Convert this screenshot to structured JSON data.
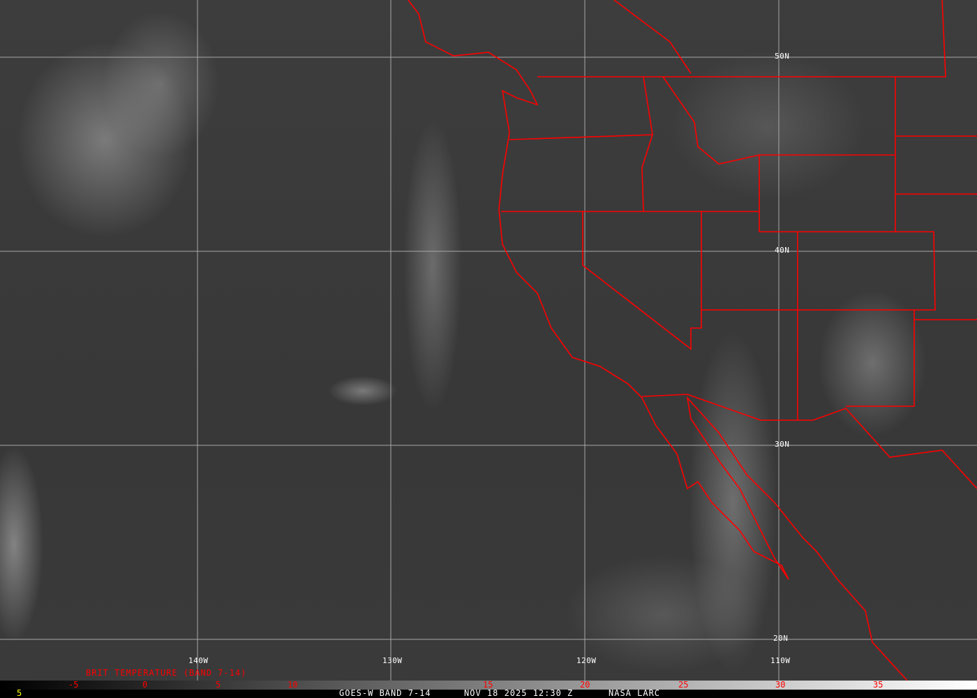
{
  "map": {
    "type": "satellite infrared image",
    "latitude_labels": [
      "50N",
      "40N",
      "30N",
      "20N"
    ],
    "longitude_labels": [
      "140W",
      "130W",
      "120W",
      "110W"
    ],
    "border_color": "#ff0000",
    "grid_color": "#b0b0b0"
  },
  "colorbar": {
    "title": "BRIT TEMPERATURE (BAND 7-14)",
    "ticks": [
      "-5",
      "0",
      "5",
      "10",
      "15",
      "20",
      "25",
      "30",
      "35"
    ],
    "tick_color": "#ff0000"
  },
  "footer": {
    "left_value": "5",
    "satellite": "GOES-W BAND 7-14",
    "datetime": "NOV 18 2025 12:30 Z",
    "source": "NASA LARC"
  }
}
